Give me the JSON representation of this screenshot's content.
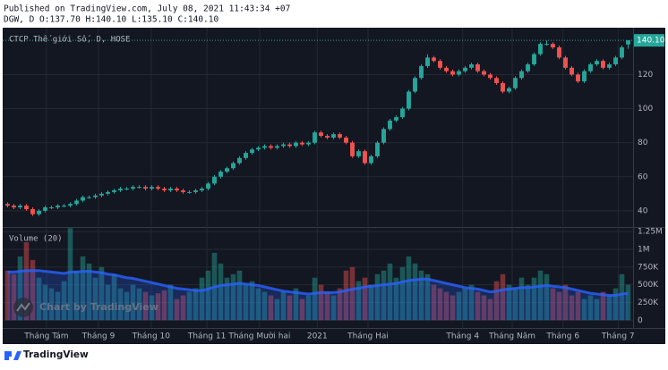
{
  "header": {
    "published": "Published on TradingView.com, July 08, 2021 11:43:34 +07",
    "symbol_line": "DGW, D O:137.70 H:140.10 L:135.10 C:140.10"
  },
  "chart_data": {
    "type": "candlestick",
    "title": "CTCP Thế giới Số, D, HOSE",
    "volume_label": "Volume (20)",
    "watermark": "Chart by TradingView",
    "up_color": "#26a69a",
    "down_color": "#ef5350",
    "ma_color": "#2962ff",
    "grid": true,
    "open": [
      44,
      43,
      42,
      43,
      41,
      38,
      40,
      42,
      42,
      43,
      43,
      44,
      46,
      48,
      48,
      49,
      50,
      51,
      52,
      53,
      53,
      54,
      54,
      53,
      54,
      53,
      52,
      53,
      52,
      51,
      51,
      52,
      53,
      56,
      60,
      63,
      65,
      68,
      71,
      74,
      76,
      77,
      78,
      77,
      78,
      79,
      78,
      80,
      79,
      80,
      86,
      84,
      83,
      85,
      83,
      80,
      72,
      75,
      68,
      72,
      80,
      88,
      93,
      95,
      100,
      110,
      118,
      125,
      130,
      128,
      124,
      122,
      120,
      122,
      124,
      126,
      122,
      120,
      118,
      115,
      110,
      112,
      118,
      122,
      126,
      132,
      138,
      138,
      136,
      130,
      124,
      120,
      116,
      122,
      126,
      128,
      124,
      126,
      130,
      137.7
    ],
    "high": [
      45,
      44,
      44,
      44,
      42,
      41,
      43,
      43,
      44,
      44,
      45,
      47,
      49,
      49,
      50,
      51,
      52,
      53,
      54,
      54,
      55,
      55,
      55,
      55,
      55,
      54,
      54,
      54,
      53,
      52,
      53,
      54,
      57,
      61,
      64,
      66,
      69,
      72,
      75,
      77,
      78,
      79,
      79,
      79,
      80,
      80,
      81,
      81,
      81,
      87,
      87,
      85,
      86,
      86,
      84,
      81,
      76,
      76,
      73,
      81,
      89,
      94,
      96,
      101,
      111,
      119,
      126,
      132,
      131,
      129,
      125,
      123,
      123,
      125,
      127,
      127,
      123,
      121,
      119,
      116,
      113,
      119,
      123,
      127,
      133,
      139,
      140,
      139,
      137,
      131,
      125,
      121,
      123,
      127,
      129,
      129,
      127,
      131,
      137,
      140.1
    ],
    "low": [
      42,
      41,
      41,
      40,
      37,
      37,
      39,
      41,
      41,
      42,
      42,
      43,
      45,
      47,
      47,
      48,
      49,
      50,
      51,
      52,
      52,
      53,
      52,
      52,
      52,
      51,
      51,
      51,
      50,
      50,
      50,
      51,
      52,
      55,
      59,
      62,
      64,
      67,
      70,
      73,
      75,
      76,
      76,
      76,
      77,
      77,
      77,
      78,
      78,
      79,
      83,
      82,
      82,
      82,
      79,
      71,
      71,
      67,
      67,
      71,
      79,
      87,
      92,
      94,
      99,
      109,
      117,
      124,
      127,
      123,
      121,
      119,
      119,
      121,
      123,
      121,
      119,
      117,
      114,
      109,
      109,
      111,
      117,
      121,
      125,
      131,
      137,
      135,
      129,
      123,
      119,
      115,
      115,
      121,
      125,
      123,
      123,
      125,
      129,
      135.1
    ],
    "close": [
      43,
      42,
      43,
      41,
      38,
      40,
      42,
      42,
      43,
      43,
      44,
      46,
      48,
      48,
      49,
      50,
      51,
      52,
      53,
      53,
      54,
      54,
      53,
      54,
      53,
      52,
      53,
      52,
      51,
      51,
      52,
      53,
      56,
      60,
      63,
      65,
      68,
      71,
      74,
      76,
      77,
      78,
      77,
      78,
      79,
      78,
      80,
      79,
      80,
      86,
      84,
      83,
      85,
      83,
      80,
      72,
      75,
      68,
      72,
      80,
      88,
      93,
      95,
      100,
      110,
      118,
      125,
      130,
      128,
      124,
      122,
      120,
      122,
      124,
      126,
      122,
      120,
      118,
      115,
      110,
      112,
      118,
      122,
      126,
      132,
      138,
      138,
      136,
      130,
      124,
      120,
      116,
      122,
      126,
      128,
      124,
      126,
      130,
      136,
      140.1
    ],
    "volume": [
      700000,
      650000,
      900000,
      1100000,
      850000,
      600000,
      500000,
      450000,
      400000,
      550000,
      1300000,
      700000,
      900000,
      800000,
      600000,
      750000,
      500000,
      650000,
      450000,
      400000,
      500000,
      450000,
      400000,
      350000,
      380000,
      420000,
      500000,
      300000,
      350000,
      400000,
      450000,
      600000,
      700000,
      950000,
      800000,
      600000,
      650000,
      700000,
      500000,
      550000,
      450000,
      400000,
      350000,
      300000,
      400000,
      350000,
      450000,
      300000,
      350000,
      600000,
      500000,
      400000,
      350000,
      450000,
      700000,
      750000,
      550000,
      600000,
      500000,
      650000,
      700000,
      800000,
      600000,
      750000,
      900000,
      800000,
      700000,
      650000,
      500000,
      450000,
      400000,
      350000,
      400000,
      450000,
      500000,
      400000,
      350000,
      300000,
      550000,
      650000,
      500000,
      450000,
      600000,
      500000,
      600000,
      700000,
      650000,
      450000,
      400000,
      500000,
      350000,
      400000,
      300000,
      350000,
      300000,
      400000,
      350000,
      450000,
      650000,
      500000
    ],
    "volume_ma": [
      680000,
      680000,
      690000,
      700000,
      700000,
      700000,
      690000,
      680000,
      670000,
      660000,
      680000,
      680000,
      690000,
      690000,
      680000,
      670000,
      650000,
      640000,
      620000,
      600000,
      590000,
      570000,
      550000,
      530000,
      510000,
      490000,
      470000,
      450000,
      440000,
      430000,
      420000,
      420000,
      440000,
      470000,
      490000,
      500000,
      510000,
      520000,
      510000,
      500000,
      490000,
      470000,
      450000,
      430000,
      410000,
      400000,
      390000,
      380000,
      370000,
      380000,
      390000,
      390000,
      390000,
      400000,
      420000,
      440000,
      450000,
      470000,
      480000,
      490000,
      500000,
      510000,
      520000,
      540000,
      560000,
      570000,
      580000,
      580000,
      560000,
      540000,
      520000,
      500000,
      480000,
      460000,
      450000,
      440000,
      420000,
      400000,
      410000,
      430000,
      440000,
      450000,
      460000,
      460000,
      470000,
      480000,
      490000,
      480000,
      470000,
      460000,
      440000,
      420000,
      400000,
      380000,
      370000,
      360000,
      350000,
      350000,
      370000,
      380000
    ],
    "xlim": [
      -0.5,
      99.5
    ],
    "xticks": [
      {
        "value": 6.2,
        "label": "Tháng Tám"
      },
      {
        "value": 14.5,
        "label": "Tháng 9"
      },
      {
        "value": 22.9,
        "label": "Tháng 10"
      },
      {
        "value": 31.8,
        "label": "Tháng 11"
      },
      {
        "value": 40.2,
        "label": "Tháng Mười hai"
      },
      {
        "value": 49.4,
        "label": "2021"
      },
      {
        "value": 57.5,
        "label": "Tháng Hai"
      },
      {
        "value": 72.6,
        "label": "Tháng 4"
      },
      {
        "value": 80.5,
        "label": "Tháng Năm"
      },
      {
        "value": 88.6,
        "label": "Tháng 6"
      },
      {
        "value": 97.4,
        "label": "Tháng 7"
      }
    ],
    "ylim": [
      31,
      147
    ],
    "yticks": [
      40,
      60,
      80,
      100,
      120
    ],
    "last_price": {
      "value": 140.1,
      "label": "140.10"
    },
    "vlim": [
      -110000,
      1290000
    ],
    "vticks": [
      0,
      {
        "value": 250000,
        "label": "250K"
      },
      {
        "value": 500000,
        "label": "500K"
      },
      {
        "value": 750000,
        "label": "750K"
      },
      {
        "value": 1000000,
        "label": "1M"
      },
      {
        "value": 1250000,
        "label": "1.25M"
      }
    ]
  },
  "footer": {
    "brand": "TradingView"
  }
}
